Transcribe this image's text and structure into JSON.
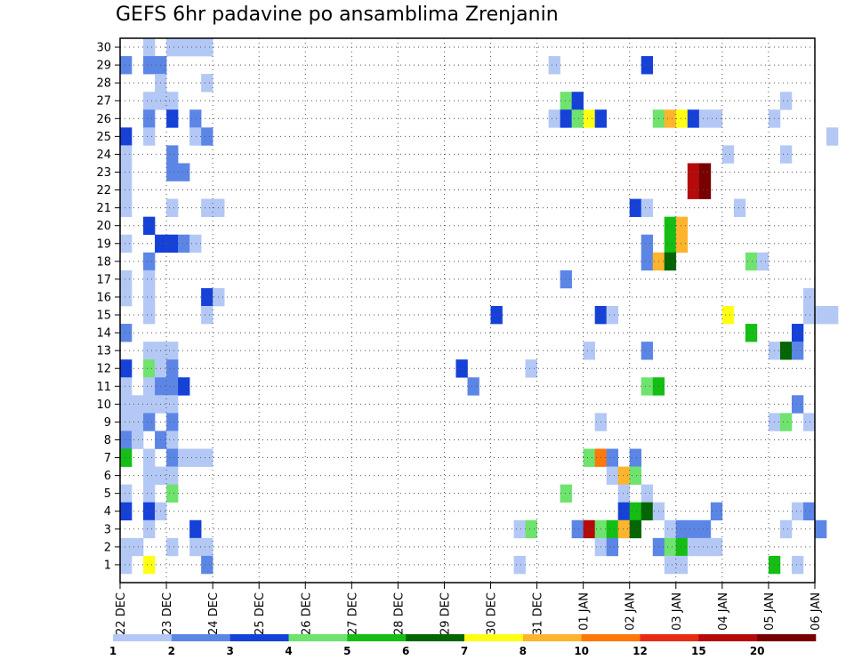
{
  "chart_data": {
    "type": "heatmap",
    "title": "GEFS 6hr padavine po ansamblima Zrenjanin",
    "xlabel": "",
    "ylabel": "",
    "x_steps_per_day": 4,
    "x_tick_labels": [
      "22 DEC",
      "23 DEC",
      "24 DEC",
      "25 DEC",
      "26 DEC",
      "27 DEC",
      "28 DEC",
      "29 DEC",
      "30 DEC",
      "31 DEC",
      "01 JAN",
      "02 JAN",
      "03 JAN",
      "04 JAN",
      "05 JAN",
      "06 JAN"
    ],
    "y_tick_labels": [
      "1",
      "2",
      "3",
      "4",
      "5",
      "6",
      "7",
      "8",
      "9",
      "10",
      "11",
      "12",
      "13",
      "14",
      "15",
      "16",
      "17",
      "18",
      "19",
      "20",
      "21",
      "22",
      "23",
      "24",
      "25",
      "26",
      "27",
      "28",
      "29",
      "30"
    ],
    "ylim": [
      1,
      30
    ],
    "grid": true,
    "legend": {
      "position": "bottom",
      "thresholds": [
        "1",
        "2",
        "3",
        "4",
        "5",
        "6",
        "7",
        "8",
        "10",
        "12",
        "15",
        "20"
      ],
      "colors": [
        "#b4c8f5",
        "#5c86e6",
        "#1541d9",
        "#6ee36e",
        "#14be14",
        "#036603",
        "#ffff14",
        "#ffb42d",
        "#ff780a",
        "#e62d14",
        "#b40a0a",
        "#780000"
      ]
    },
    "cells_note": "cells: [step_index, member, level]; level 1..12 indexes legend.colors",
    "cells": [
      [
        0,
        29,
        2
      ],
      [
        0,
        25,
        3
      ],
      [
        0,
        24,
        1
      ],
      [
        0,
        23,
        1
      ],
      [
        0,
        22,
        1
      ],
      [
        0,
        21,
        1
      ],
      [
        0,
        19,
        1
      ],
      [
        0,
        17,
        1
      ],
      [
        0,
        16,
        1
      ],
      [
        0,
        14,
        2
      ],
      [
        0,
        12,
        3
      ],
      [
        0,
        11,
        1
      ],
      [
        0,
        10,
        1
      ],
      [
        0,
        9,
        1
      ],
      [
        0,
        8,
        2
      ],
      [
        0,
        7,
        5
      ],
      [
        0,
        5,
        1
      ],
      [
        0,
        4,
        3
      ],
      [
        0,
        2,
        1
      ],
      [
        0,
        1,
        1
      ],
      [
        1,
        10,
        1
      ],
      [
        1,
        9,
        1
      ],
      [
        1,
        8,
        1
      ],
      [
        1,
        2,
        1
      ],
      [
        2,
        30,
        1
      ],
      [
        2,
        29,
        2
      ],
      [
        2,
        27,
        1
      ],
      [
        2,
        26,
        2
      ],
      [
        2,
        25,
        1
      ],
      [
        2,
        20,
        3
      ],
      [
        2,
        18,
        2
      ],
      [
        2,
        17,
        1
      ],
      [
        2,
        16,
        1
      ],
      [
        2,
        15,
        1
      ],
      [
        2,
        13,
        1
      ],
      [
        2,
        12,
        4
      ],
      [
        2,
        11,
        1
      ],
      [
        2,
        10,
        1
      ],
      [
        2,
        9,
        2
      ],
      [
        2,
        7,
        1
      ],
      [
        2,
        6,
        1
      ],
      [
        2,
        5,
        1
      ],
      [
        2,
        4,
        3
      ],
      [
        2,
        3,
        1
      ],
      [
        2,
        1,
        7
      ],
      [
        3,
        29,
        2
      ],
      [
        3,
        28,
        1
      ],
      [
        3,
        27,
        1
      ],
      [
        3,
        19,
        3
      ],
      [
        3,
        13,
        1
      ],
      [
        3,
        12,
        1
      ],
      [
        3,
        11,
        2
      ],
      [
        3,
        10,
        1
      ],
      [
        3,
        8,
        2
      ],
      [
        3,
        6,
        1
      ],
      [
        3,
        4,
        1
      ],
      [
        4,
        30,
        1
      ],
      [
        4,
        27,
        1
      ],
      [
        4,
        26,
        3
      ],
      [
        4,
        24,
        2
      ],
      [
        4,
        23,
        2
      ],
      [
        4,
        21,
        1
      ],
      [
        4,
        19,
        3
      ],
      [
        4,
        13,
        1
      ],
      [
        4,
        12,
        2
      ],
      [
        4,
        11,
        2
      ],
      [
        4,
        10,
        1
      ],
      [
        4,
        9,
        2
      ],
      [
        4,
        8,
        1
      ],
      [
        4,
        7,
        2
      ],
      [
        4,
        6,
        1
      ],
      [
        4,
        5,
        4
      ],
      [
        4,
        2,
        1
      ],
      [
        5,
        30,
        1
      ],
      [
        5,
        23,
        2
      ],
      [
        5,
        19,
        2
      ],
      [
        5,
        11,
        3
      ],
      [
        5,
        7,
        1
      ],
      [
        6,
        30,
        1
      ],
      [
        6,
        26,
        2
      ],
      [
        6,
        25,
        1
      ],
      [
        6,
        19,
        1
      ],
      [
        6,
        7,
        1
      ],
      [
        6,
        3,
        3
      ],
      [
        6,
        2,
        1
      ],
      [
        7,
        30,
        1
      ],
      [
        7,
        28,
        1
      ],
      [
        7,
        25,
        2
      ],
      [
        7,
        21,
        1
      ],
      [
        7,
        16,
        3
      ],
      [
        7,
        15,
        1
      ],
      [
        7,
        7,
        1
      ],
      [
        7,
        2,
        1
      ],
      [
        7,
        1,
        2
      ],
      [
        8,
        21,
        1
      ],
      [
        8,
        16,
        1
      ],
      [
        29,
        12,
        3
      ],
      [
        30,
        11,
        2
      ],
      [
        32,
        15,
        3
      ],
      [
        34,
        1,
        1
      ],
      [
        34,
        3,
        1
      ],
      [
        35,
        12,
        1
      ],
      [
        35,
        3,
        4
      ],
      [
        37,
        29,
        1
      ],
      [
        37,
        26,
        1
      ],
      [
        38,
        27,
        4
      ],
      [
        38,
        26,
        3
      ],
      [
        38,
        17,
        2
      ],
      [
        38,
        5,
        4
      ],
      [
        39,
        27,
        3
      ],
      [
        39,
        26,
        4
      ],
      [
        39,
        3,
        2
      ],
      [
        40,
        26,
        7
      ],
      [
        40,
        13,
        1
      ],
      [
        40,
        7,
        4
      ],
      [
        40,
        3,
        11
      ],
      [
        41,
        26,
        3
      ],
      [
        41,
        15,
        3
      ],
      [
        41,
        9,
        1
      ],
      [
        41,
        7,
        9
      ],
      [
        41,
        3,
        4
      ],
      [
        41,
        2,
        1
      ],
      [
        42,
        15,
        1
      ],
      [
        42,
        7,
        2
      ],
      [
        42,
        6,
        1
      ],
      [
        42,
        3,
        5
      ],
      [
        42,
        2,
        2
      ],
      [
        43,
        6,
        8
      ],
      [
        43,
        5,
        1
      ],
      [
        43,
        4,
        3
      ],
      [
        43,
        3,
        8
      ],
      [
        44,
        21,
        3
      ],
      [
        44,
        7,
        2
      ],
      [
        44,
        6,
        4
      ],
      [
        44,
        4,
        5
      ],
      [
        44,
        3,
        6
      ],
      [
        45,
        29,
        3
      ],
      [
        45,
        21,
        1
      ],
      [
        45,
        19,
        2
      ],
      [
        45,
        18,
        2
      ],
      [
        45,
        13,
        2
      ],
      [
        45,
        11,
        4
      ],
      [
        45,
        5,
        1
      ],
      [
        45,
        4,
        6
      ],
      [
        46,
        26,
        4
      ],
      [
        46,
        18,
        8
      ],
      [
        46,
        11,
        5
      ],
      [
        46,
        4,
        1
      ],
      [
        46,
        2,
        2
      ],
      [
        47,
        26,
        8
      ],
      [
        47,
        20,
        5
      ],
      [
        47,
        19,
        5
      ],
      [
        47,
        18,
        6
      ],
      [
        47,
        3,
        1
      ],
      [
        47,
        2,
        4
      ],
      [
        47,
        1,
        1
      ],
      [
        48,
        26,
        7
      ],
      [
        48,
        20,
        8
      ],
      [
        48,
        19,
        8
      ],
      [
        48,
        3,
        2
      ],
      [
        48,
        2,
        5
      ],
      [
        48,
        1,
        1
      ],
      [
        49,
        26,
        3
      ],
      [
        49,
        23,
        11
      ],
      [
        49,
        22,
        11
      ],
      [
        49,
        3,
        2
      ],
      [
        49,
        2,
        1
      ],
      [
        50,
        26,
        1
      ],
      [
        50,
        23,
        12
      ],
      [
        50,
        22,
        12
      ],
      [
        50,
        3,
        2
      ],
      [
        50,
        2,
        1
      ],
      [
        51,
        26,
        1
      ],
      [
        51,
        4,
        2
      ],
      [
        51,
        2,
        1
      ],
      [
        52,
        24,
        1
      ],
      [
        52,
        15,
        7
      ],
      [
        53,
        21,
        1
      ],
      [
        54,
        18,
        4
      ],
      [
        54,
        14,
        5
      ],
      [
        55,
        18,
        1
      ],
      [
        56,
        26,
        1
      ],
      [
        56,
        13,
        1
      ],
      [
        56,
        9,
        1
      ],
      [
        56,
        1,
        5
      ],
      [
        57,
        27,
        1
      ],
      [
        57,
        24,
        1
      ],
      [
        57,
        13,
        6
      ],
      [
        57,
        9,
        4
      ],
      [
        57,
        3,
        1
      ],
      [
        58,
        14,
        3
      ],
      [
        58,
        13,
        2
      ],
      [
        58,
        10,
        2
      ],
      [
        58,
        4,
        1
      ],
      [
        58,
        1,
        1
      ],
      [
        59,
        16,
        1
      ],
      [
        59,
        15,
        1
      ],
      [
        59,
        9,
        1
      ],
      [
        59,
        4,
        2
      ],
      [
        60,
        15,
        1
      ],
      [
        60,
        3,
        2
      ],
      [
        61,
        25,
        1
      ],
      [
        61,
        15,
        1
      ]
    ]
  }
}
